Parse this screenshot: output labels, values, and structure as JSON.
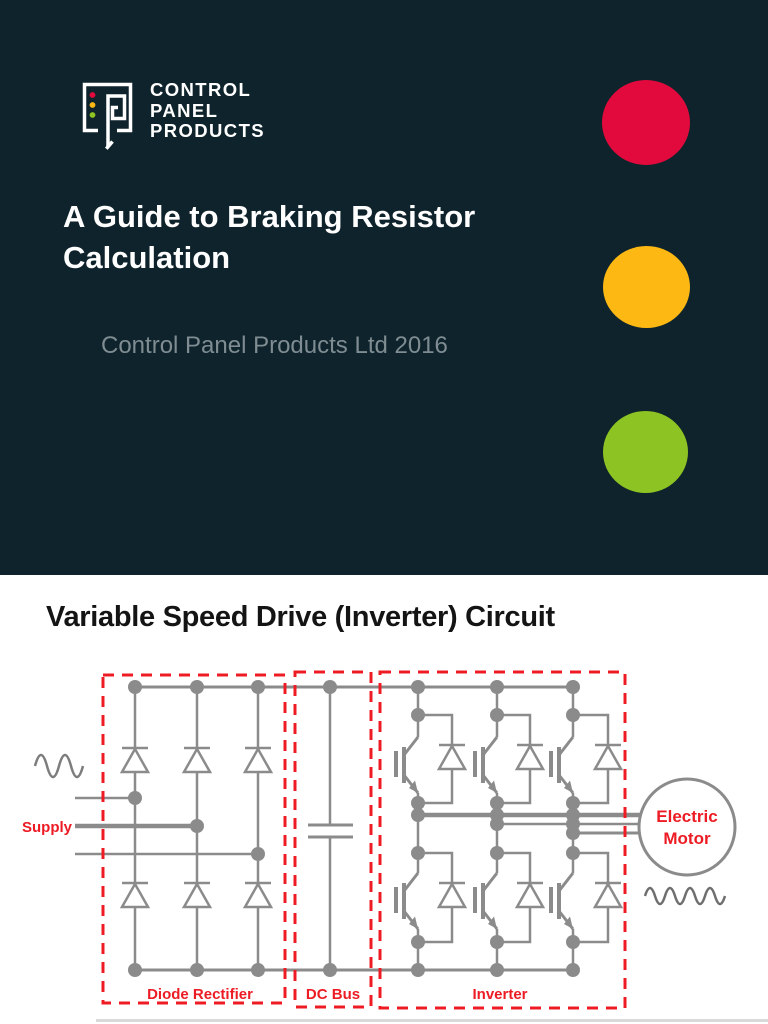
{
  "document": {
    "page1": {
      "brand": {
        "line1": "CONTROL",
        "line2": "PANEL",
        "line3": "PRODUCTS"
      },
      "title": {
        "line1": "A Guide to Braking Resistor",
        "line2": "Calculation"
      },
      "subtitle": "Control Panel Products Ltd 2016",
      "colors": {
        "background": "#0e232b",
        "accent_red": "#e20a3d",
        "accent_amber": "#fdb813",
        "accent_green": "#8dc323",
        "subtitle_text": "#7f8c92"
      },
      "decorations": [
        {
          "name": "red-circle",
          "color": "#e20a3d"
        },
        {
          "name": "amber-circle",
          "color": "#fdb813"
        },
        {
          "name": "green-circle",
          "color": "#8dc323"
        }
      ]
    },
    "page2": {
      "title": "Variable Speed Drive (Inverter) Circuit",
      "diagram": {
        "supply_label": "Supply",
        "section_labels": {
          "rectifier": "Diode Rectifier",
          "dc_bus": "DC Bus",
          "inverter": "Inverter"
        },
        "motor_label": {
          "line1": "Electric",
          "line2": "Motor"
        },
        "colors": {
          "wire": "#8b8b8b",
          "highlight_red": "#ed1c24"
        }
      }
    }
  }
}
